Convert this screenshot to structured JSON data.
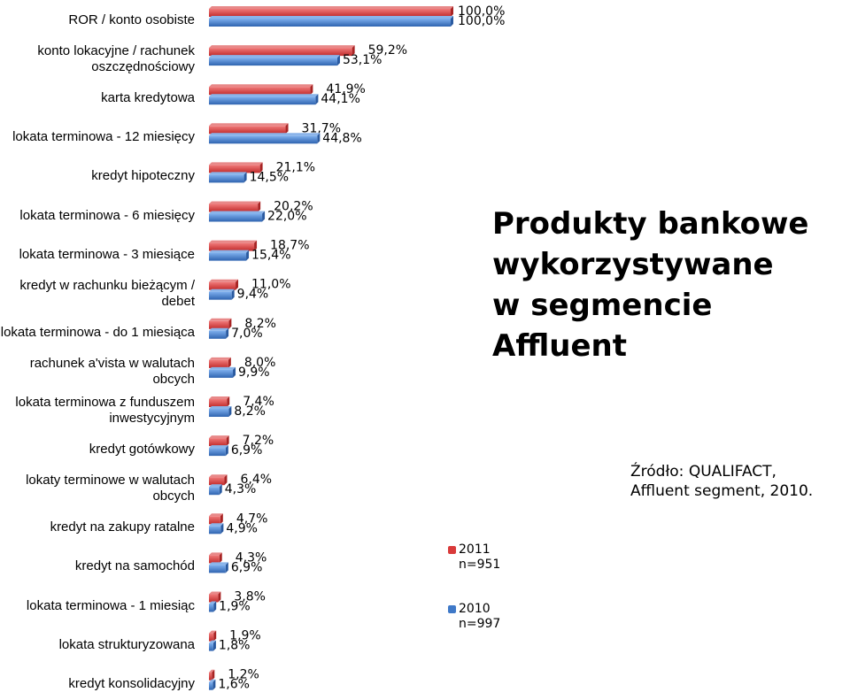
{
  "chart_data": {
    "type": "bar",
    "orientation": "horizontal",
    "title": "Produkty bankowe\nwykorzystywane\nw segmencie Affluent",
    "source": "Źródło: QUALIFACT,\nAffluent segment, 2010.",
    "categories": [
      "ROR / konto osobiste",
      "konto lokacyjne / rachunek oszczędnościowy",
      "karta kredytowa",
      "lokata terminowa - 12 miesięcy",
      "kredyt hipoteczny",
      "lokata terminowa - 6 miesięcy",
      "lokata terminowa - 3 miesiące",
      "kredyt w rachunku bieżącym / debet",
      "lokata terminowa - do 1 miesiąca",
      "rachunek a'vista w walutach obcych",
      "lokata terminowa z funduszem inwestycyjnym",
      "kredyt gotówkowy",
      "lokaty terminowe w walutach obcych",
      "kredyt na zakupy ratalne",
      "kredyt na samochód",
      "lokata terminowa - 1 miesiąc",
      "lokata strukturyzowana",
      "kredyt konsolidacyjny"
    ],
    "series": [
      {
        "name": "2011\nn=951",
        "color": "#d93a3a",
        "values": [
          100.0,
          59.2,
          41.9,
          31.7,
          21.1,
          20.2,
          18.7,
          11.0,
          8.2,
          8.0,
          7.4,
          7.2,
          6.4,
          4.7,
          4.3,
          3.8,
          1.9,
          1.2
        ],
        "labels": [
          "100,0%",
          "59,2%",
          "41,9%",
          "31,7%",
          "21,1%",
          "20,2%",
          "18,7%",
          "11,0%",
          "8,2%",
          "8,0%",
          "7,4%",
          "7,2%",
          "6,4%",
          "4,7%",
          "4,3%",
          "3,8%",
          "1,9%",
          "1,2%"
        ]
      },
      {
        "name": "2010\nn=997",
        "color": "#3f79c8",
        "values": [
          100.0,
          53.1,
          44.1,
          44.8,
          14.5,
          22.0,
          15.4,
          9.4,
          7.0,
          9.9,
          8.2,
          6.9,
          4.3,
          4.9,
          6.9,
          1.9,
          1.8,
          1.6
        ],
        "labels": [
          "100,0%",
          "53,1%",
          "44,1%",
          "44,8%",
          "14,5%",
          "22,0%",
          "15,4%",
          "9,4%",
          "7,0%",
          "9,9%",
          "8,2%",
          "6,9%",
          "4,3%",
          "4,9%",
          "6,9%",
          "1,9%",
          "1,8%",
          "1,6%"
        ]
      }
    ],
    "xlim": [
      0,
      100
    ],
    "grid": false,
    "legend_position": "bottom-right"
  }
}
